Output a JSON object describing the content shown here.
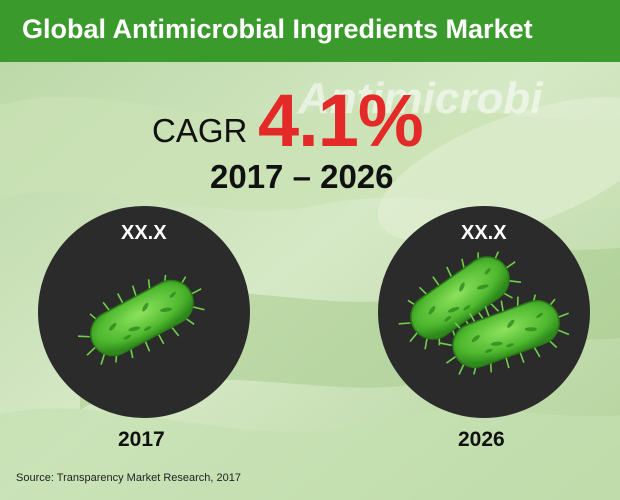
{
  "header": {
    "title": "Global Antimicrobial Ingredients Market"
  },
  "background": {
    "watermark_text": "Antimicrobi"
  },
  "cagr": {
    "label": "CAGR",
    "value": "4.1%",
    "period": "2017 – 2026"
  },
  "chart_data": {
    "type": "bar",
    "categories": [
      "2017",
      "2026"
    ],
    "value_labels": [
      "XX.X",
      "XX.X"
    ],
    "values": [
      null,
      null
    ],
    "title": "Global Antimicrobial Ingredients Market"
  },
  "source": "Source: Transparency Market Research, 2017",
  "colors": {
    "title_bar": "#3a9b2c",
    "cagr_value": "#e42a28",
    "circle": "#2b2b2b",
    "bacteria": "#5cc93a"
  },
  "icons": [
    "bacterium-icon-single",
    "bacteria-icon-pair"
  ]
}
